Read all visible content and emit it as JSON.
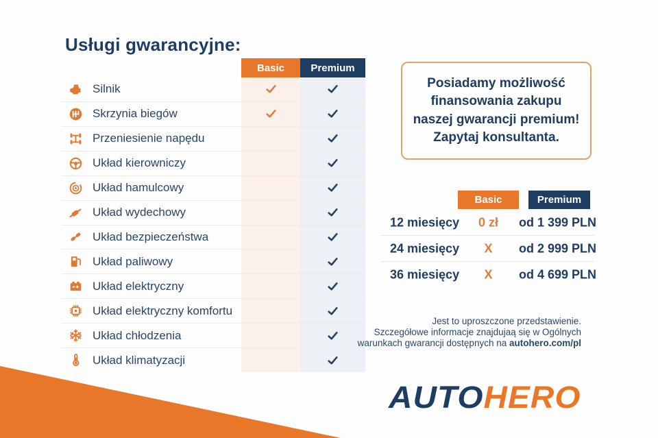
{
  "title": "Usługi gwarancyjne:",
  "colors": {
    "accent_orange": "#E8772A",
    "icon_orange": "#E07A33",
    "check_orange": "#DC7E3C",
    "navy": "#1E3D60",
    "basic_tint": "#FCF1EA",
    "premium_tint": "#EDF1F6",
    "box_border": "#DEA468"
  },
  "warranty_table": {
    "columns": [
      "Basic",
      "Premium"
    ],
    "services": [
      {
        "icon": "engine-icon",
        "label": "Silnik",
        "basic": true,
        "premium": true
      },
      {
        "icon": "gearbox-icon",
        "label": "Skrzynia biegów",
        "basic": true,
        "premium": true
      },
      {
        "icon": "drivetrain-icon",
        "label": "Przeniesienie napędu",
        "basic": false,
        "premium": true
      },
      {
        "icon": "steering-wheel-icon",
        "label": "Układ kierowniczy",
        "basic": false,
        "premium": true
      },
      {
        "icon": "brake-disc-icon",
        "label": "Układ hamulcowy",
        "basic": false,
        "premium": true
      },
      {
        "icon": "exhaust-icon",
        "label": "Układ wydechowy",
        "basic": false,
        "premium": true
      },
      {
        "icon": "seatbelt-icon",
        "label": "Układ bezpieczeństwa",
        "basic": false,
        "premium": true
      },
      {
        "icon": "fuel-pump-icon",
        "label": "Układ paliwowy",
        "basic": false,
        "premium": true
      },
      {
        "icon": "battery-icon",
        "label": "Układ elektryczny",
        "basic": false,
        "premium": true
      },
      {
        "icon": "chip-icon",
        "label": "Układ elektryczny komfortu",
        "basic": false,
        "premium": true
      },
      {
        "icon": "snowflake-icon",
        "label": "Układ chłodzenia",
        "basic": false,
        "premium": true
      },
      {
        "icon": "thermometer-icon",
        "label": "Układ klimatyzacji",
        "basic": false,
        "premium": true
      }
    ]
  },
  "financing_note": "Posiadamy możliwość\nfinansowania zakupu\nnaszej gwarancji premium!\nZapytaj konsultanta.",
  "pricing_table": {
    "columns": [
      "Basic",
      "Premium"
    ],
    "rows": [
      {
        "term": "12 miesięcy",
        "basic": "0 zł",
        "premium": "od 1 399 PLN"
      },
      {
        "term": "24 miesięcy",
        "basic": "X",
        "premium": "od 2 999 PLN"
      },
      {
        "term": "36 miesięcy",
        "basic": "X",
        "premium": "od 4 699 PLN"
      }
    ]
  },
  "footer": {
    "line1": "Jest to uproszczone przedstawienie.",
    "line2": "Szczegółowe informacje znajdujaą się w Ogólnych",
    "line3_prefix": "warunkach gwarancji dostępnych na ",
    "line3_link": "autohero.com/pl"
  },
  "logo": {
    "part1": "AUTO",
    "part2": "HERO"
  }
}
